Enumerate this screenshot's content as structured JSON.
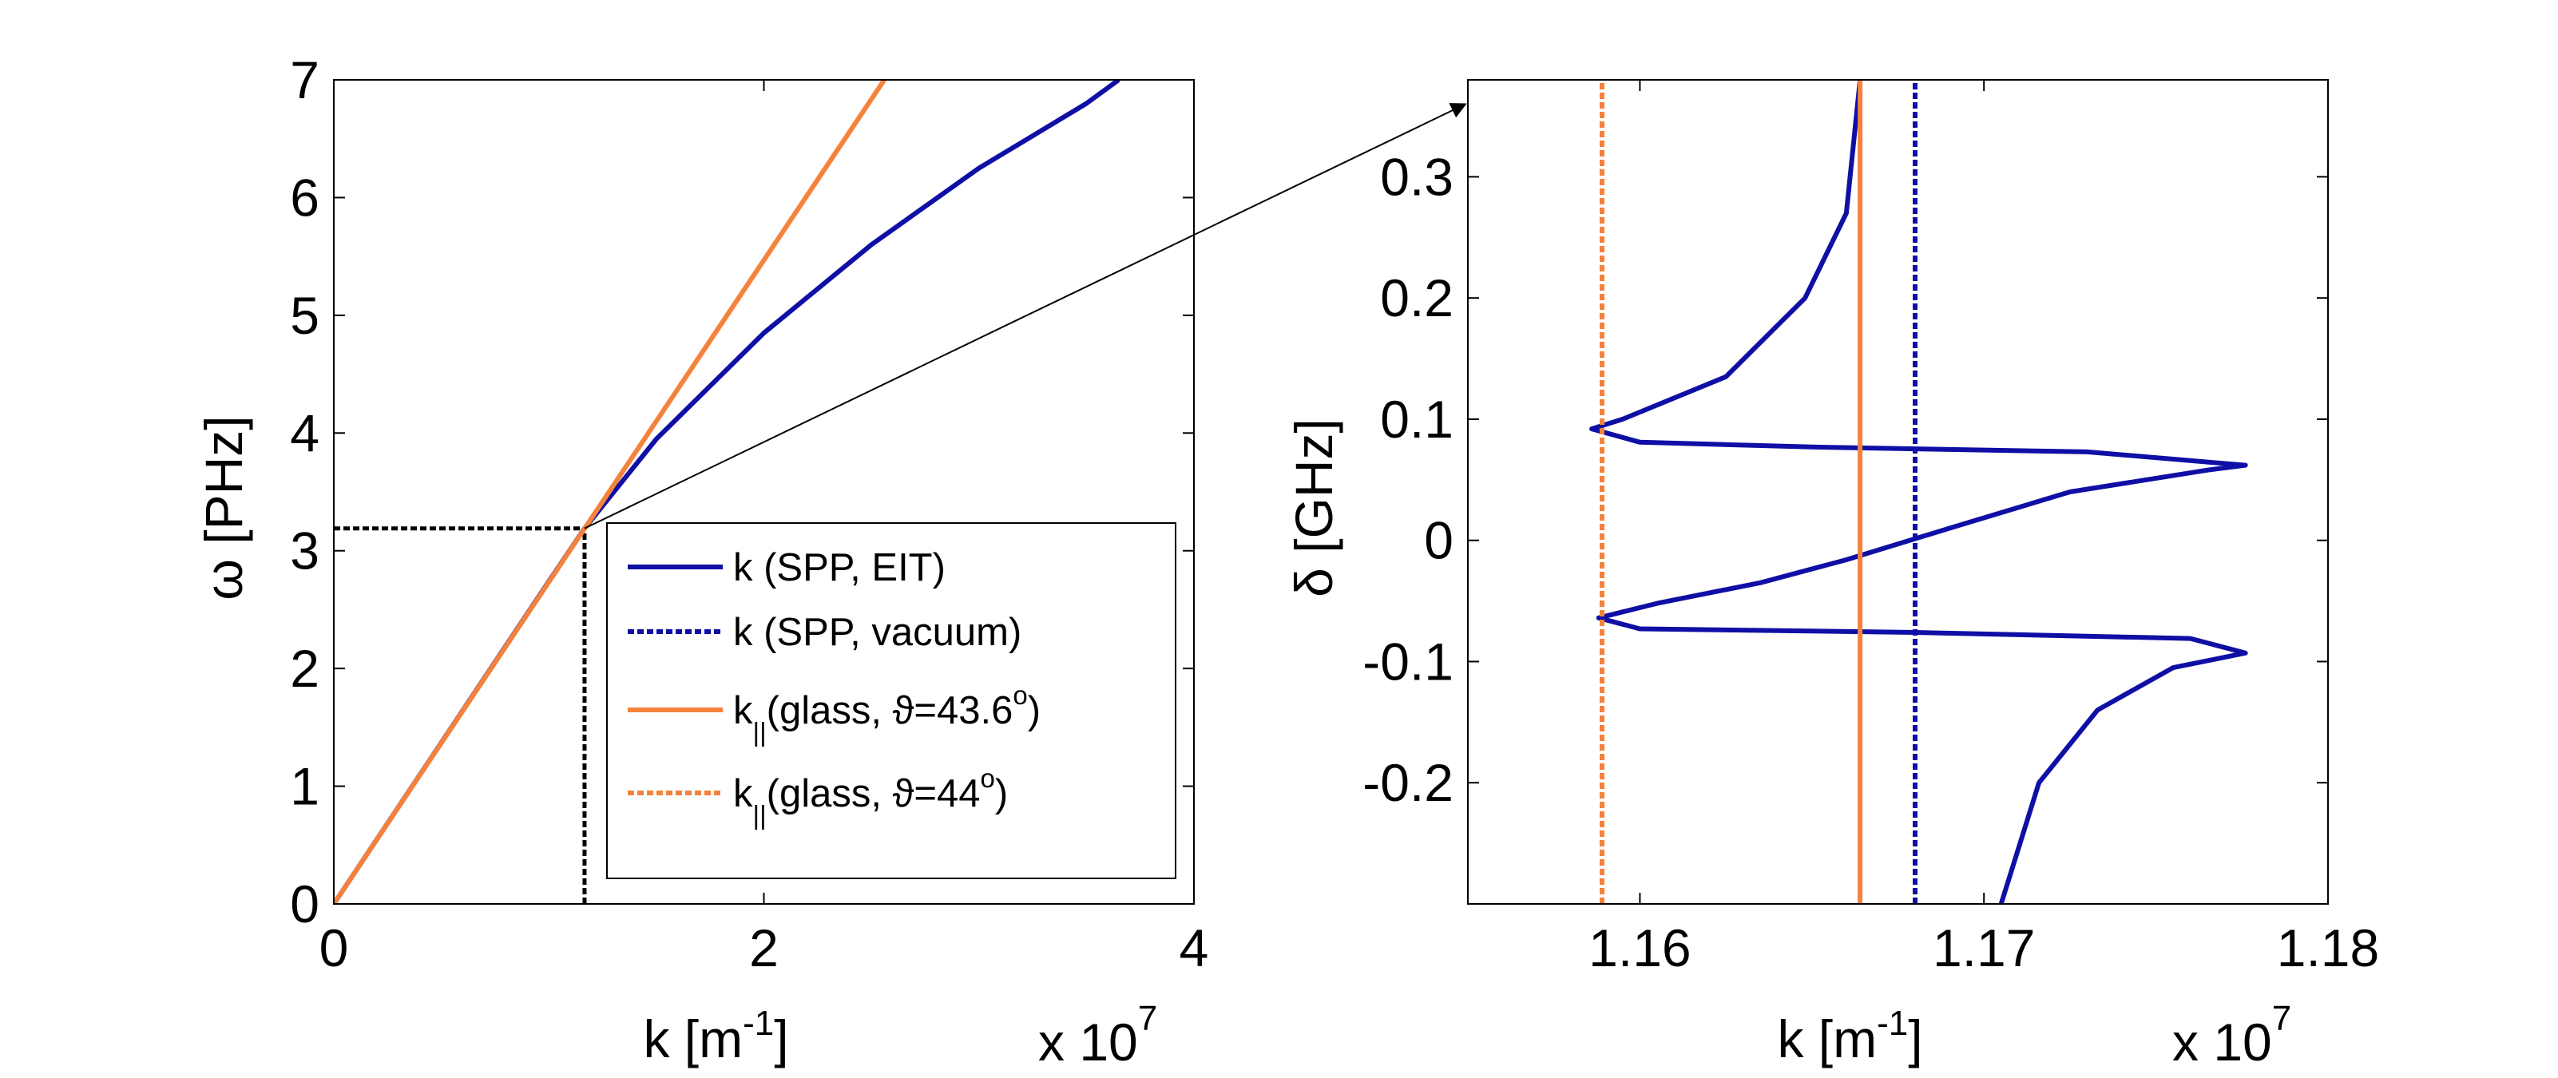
{
  "colors": {
    "blue": "#0f0fa6",
    "orange": "#f5823c",
    "black": "#000000"
  },
  "chart_data": [
    {
      "type": "line",
      "xlabel_prefix": "k [m",
      "xlabel_sup": "-1",
      "xlabel_suffix": "]",
      "ylabel": "ω [PHz]",
      "xscale_label": "x 10",
      "xscale_exp": "7",
      "xlim": [
        0,
        4
      ],
      "ylim": [
        0,
        7
      ],
      "xticks": [
        "0",
        "2",
        "4"
      ],
      "xtick_values": [
        0,
        2,
        4
      ],
      "yticks": [
        "0",
        "1",
        "2",
        "3",
        "4",
        "5",
        "6",
        "7"
      ],
      "ytick_values": [
        0,
        1,
        2,
        3,
        4,
        5,
        6,
        7
      ],
      "series": [
        {
          "name": "k (SPP, EIT)",
          "color": "#0f0fa6",
          "style": "solid",
          "points": [
            [
              0,
              0
            ],
            [
              0.5,
              1.37
            ],
            [
              1.0,
              2.74
            ],
            [
              1.166,
              3.19
            ],
            [
              1.5,
              3.95
            ],
            [
              2.0,
              4.85
            ],
            [
              2.5,
              5.6
            ],
            [
              3.0,
              6.25
            ],
            [
              3.5,
              6.8
            ],
            [
              3.65,
              7.0
            ]
          ]
        },
        {
          "name": "k∥(glass, ϑ=43.6°)",
          "color": "#f5823c",
          "style": "solid",
          "points": [
            [
              0,
              0
            ],
            [
              2.56,
              7.0
            ]
          ]
        }
      ],
      "guides": [
        {
          "from": [
            0,
            3.19
          ],
          "to": [
            1.166,
            3.19
          ]
        },
        {
          "from": [
            1.166,
            0
          ],
          "to": [
            1.166,
            3.19
          ]
        }
      ],
      "legend": {
        "position": "bottom-right",
        "entries": [
          {
            "main": "k (SPP, EIT)",
            "sub": "",
            "tail": "",
            "sup": "",
            "close": "",
            "color": "#0f0fa6",
            "style": "solid"
          },
          {
            "main": "k (SPP, vacuum)",
            "sub": "",
            "tail": "",
            "sup": "",
            "close": "",
            "color": "#0f0fa6",
            "style": "dotted"
          },
          {
            "main": "k",
            "sub": "||",
            "tail": "(glass, ϑ=43.6",
            "sup": "o",
            "close": ")",
            "color": "#f5823c",
            "style": "solid"
          },
          {
            "main": "k",
            "sub": "||",
            "tail": "(glass, ϑ=44",
            "sup": "o",
            "close": ")",
            "color": "#f5823c",
            "style": "dotted"
          }
        ]
      }
    },
    {
      "type": "line",
      "xlabel_prefix": "k [m",
      "xlabel_sup": "-1",
      "xlabel_suffix": "]",
      "ylabel": "δ [GHz]",
      "xscale_label": "x 10",
      "xscale_exp": "7",
      "xlim": [
        1.155,
        1.18
      ],
      "ylim": [
        -0.3,
        0.38
      ],
      "xticks": [
        "1.16",
        "1.17",
        "1.18"
      ],
      "xtick_values": [
        1.16,
        1.17,
        1.18
      ],
      "yticks": [
        "-0.2",
        "-0.1",
        "0",
        "0.1",
        "0.2",
        "0.3"
      ],
      "ytick_values": [
        -0.2,
        -0.1,
        0,
        0.1,
        0.2,
        0.3
      ],
      "series": [
        {
          "name": "k (SPP, EIT)",
          "color": "#0f0fa6",
          "style": "solid",
          "points": [
            [
              1.1705,
              -0.3
            ],
            [
              1.1716,
              -0.2
            ],
            [
              1.1733,
              -0.14
            ],
            [
              1.1755,
              -0.105
            ],
            [
              1.1776,
              -0.093
            ],
            [
              1.176,
              -0.081
            ],
            [
              1.168,
              -0.076
            ],
            [
              1.16,
              -0.073
            ],
            [
              1.1588,
              -0.064
            ],
            [
              1.1605,
              -0.052
            ],
            [
              1.1635,
              -0.035
            ],
            [
              1.166,
              -0.016
            ],
            [
              1.169,
              0.01
            ],
            [
              1.1725,
              0.04
            ],
            [
              1.1765,
              0.058
            ],
            [
              1.1776,
              0.062
            ],
            [
              1.173,
              0.073
            ],
            [
              1.165,
              0.077
            ],
            [
              1.16,
              0.081
            ],
            [
              1.1586,
              0.092
            ],
            [
              1.1595,
              0.1
            ],
            [
              1.1625,
              0.135
            ],
            [
              1.1648,
              0.2
            ],
            [
              1.166,
              0.27
            ],
            [
              1.1664,
              0.38
            ]
          ]
        },
        {
          "name": "k (SPP, vacuum)",
          "color": "#0f0fa6",
          "style": "dotted",
          "points": [
            [
              1.168,
              -0.3
            ],
            [
              1.168,
              0.38
            ]
          ]
        },
        {
          "name": "k∥(glass, ϑ=43.6°)",
          "color": "#f5823c",
          "style": "solid",
          "points": [
            [
              1.1664,
              -0.3
            ],
            [
              1.1664,
              0.38
            ]
          ]
        },
        {
          "name": "k∥(glass, ϑ=44°)",
          "color": "#f5823c",
          "style": "dotted",
          "points": [
            [
              1.1589,
              -0.3
            ],
            [
              1.1589,
              0.38
            ]
          ]
        }
      ]
    }
  ],
  "annotations": [
    {
      "type": "arrow",
      "from_panel": 0,
      "from": [
        1.166,
        3.19
      ],
      "to_panel": 1,
      "to": [
        1.155,
        0.36
      ]
    }
  ]
}
